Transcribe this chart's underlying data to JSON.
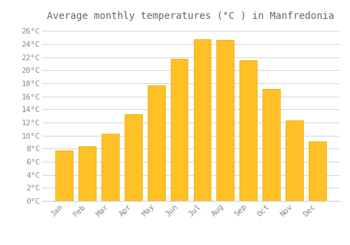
{
  "title": "Average monthly temperatures (°C ) in Manfredonia",
  "months": [
    "Jan",
    "Feb",
    "Mar",
    "Apr",
    "May",
    "Jun",
    "Jul",
    "Aug",
    "Sep",
    "Oct",
    "Nov",
    "Dec"
  ],
  "values": [
    7.7,
    8.4,
    10.3,
    13.3,
    17.7,
    21.7,
    24.7,
    24.6,
    21.5,
    17.1,
    12.3,
    9.1
  ],
  "bar_color": "#FFC125",
  "bar_edge_color": "#E8A000",
  "background_color": "#FFFFFF",
  "grid_color": "#CCCCCC",
  "text_color": "#888888",
  "title_color": "#666666",
  "ylim": [
    0,
    27
  ],
  "yticks": [
    0,
    2,
    4,
    6,
    8,
    10,
    12,
    14,
    16,
    18,
    20,
    22,
    24,
    26
  ],
  "title_fontsize": 10,
  "tick_fontsize": 8,
  "bar_width": 0.75
}
